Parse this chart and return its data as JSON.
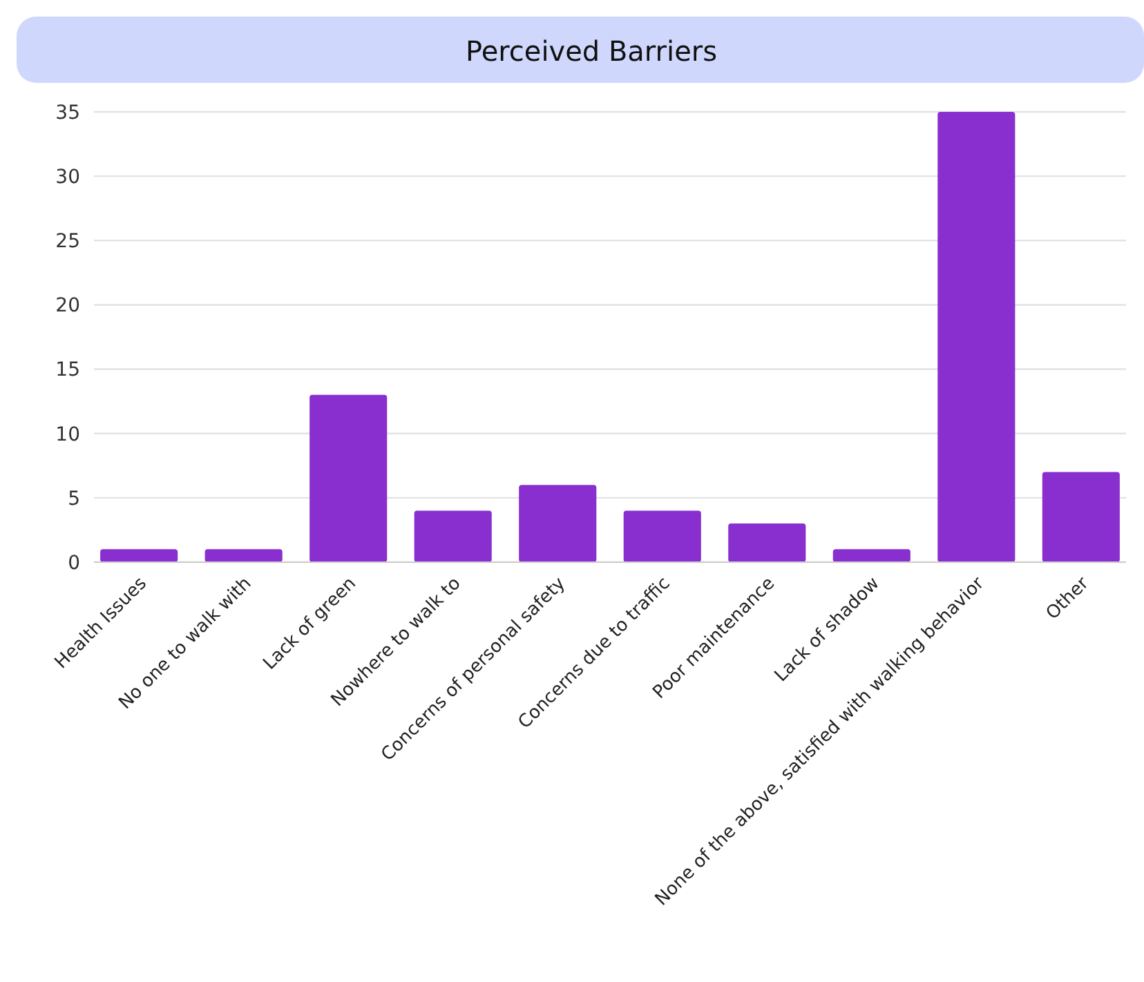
{
  "chart_data": {
    "type": "bar",
    "title": "Perceived Barriers",
    "categories": [
      "Health Issues",
      "No one to walk with",
      "Lack of green",
      "Nowhere to walk to",
      "Concerns of personal safety",
      "Concerns due to traffic",
      "Poor maintenance",
      "Lack of shadow",
      "None of the above, satisfied with walking behavior",
      "Other"
    ],
    "values": [
      1,
      1,
      13,
      4,
      6,
      4,
      3,
      1,
      35,
      7
    ],
    "color": "#8a2fcf",
    "ylim": [
      0,
      35
    ],
    "yticks": [
      0,
      5,
      10,
      15,
      20,
      25,
      30,
      35
    ],
    "grid": "y"
  }
}
